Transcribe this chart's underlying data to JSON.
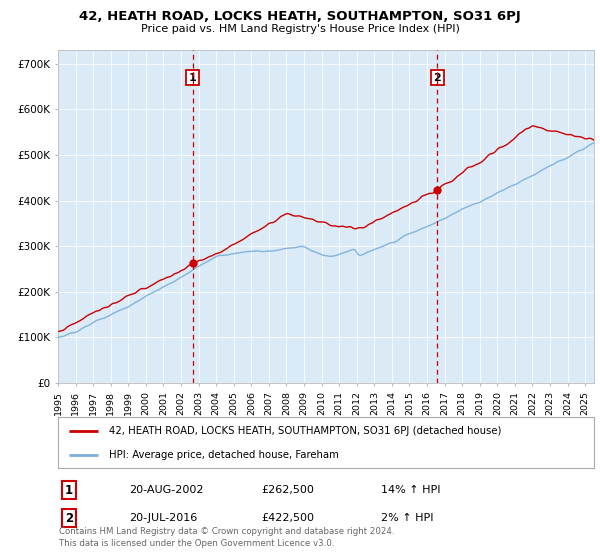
{
  "title": "42, HEATH ROAD, LOCKS HEATH, SOUTHAMPTON, SO31 6PJ",
  "subtitle": "Price paid vs. HM Land Registry's House Price Index (HPI)",
  "legend_line1": "42, HEATH ROAD, LOCKS HEATH, SOUTHAMPTON, SO31 6PJ (detached house)",
  "legend_line2": "HPI: Average price, detached house, Fareham",
  "footnote": "Contains HM Land Registry data © Crown copyright and database right 2024.\nThis data is licensed under the Open Government Licence v3.0.",
  "transaction1_date": "20-AUG-2002",
  "transaction1_price": 262500,
  "transaction1_label": "14% ↑ HPI",
  "transaction2_date": "20-JUL-2016",
  "transaction2_price": 422500,
  "transaction2_label": "2% ↑ HPI",
  "red_line_color": "#cc0000",
  "blue_line_color": "#7aadda",
  "dashed_line_color": "#cc0000",
  "fill_color": "#daeaf7",
  "background_color": "#ffffff",
  "ylim": [
    0,
    730000
  ],
  "yticks": [
    0,
    100000,
    200000,
    300000,
    400000,
    500000,
    600000,
    700000
  ],
  "ytick_labels": [
    "£0",
    "£100K",
    "£200K",
    "£300K",
    "£400K",
    "£500K",
    "£600K",
    "£700K"
  ],
  "xstart_year": 1995,
  "xend_year": 2025
}
